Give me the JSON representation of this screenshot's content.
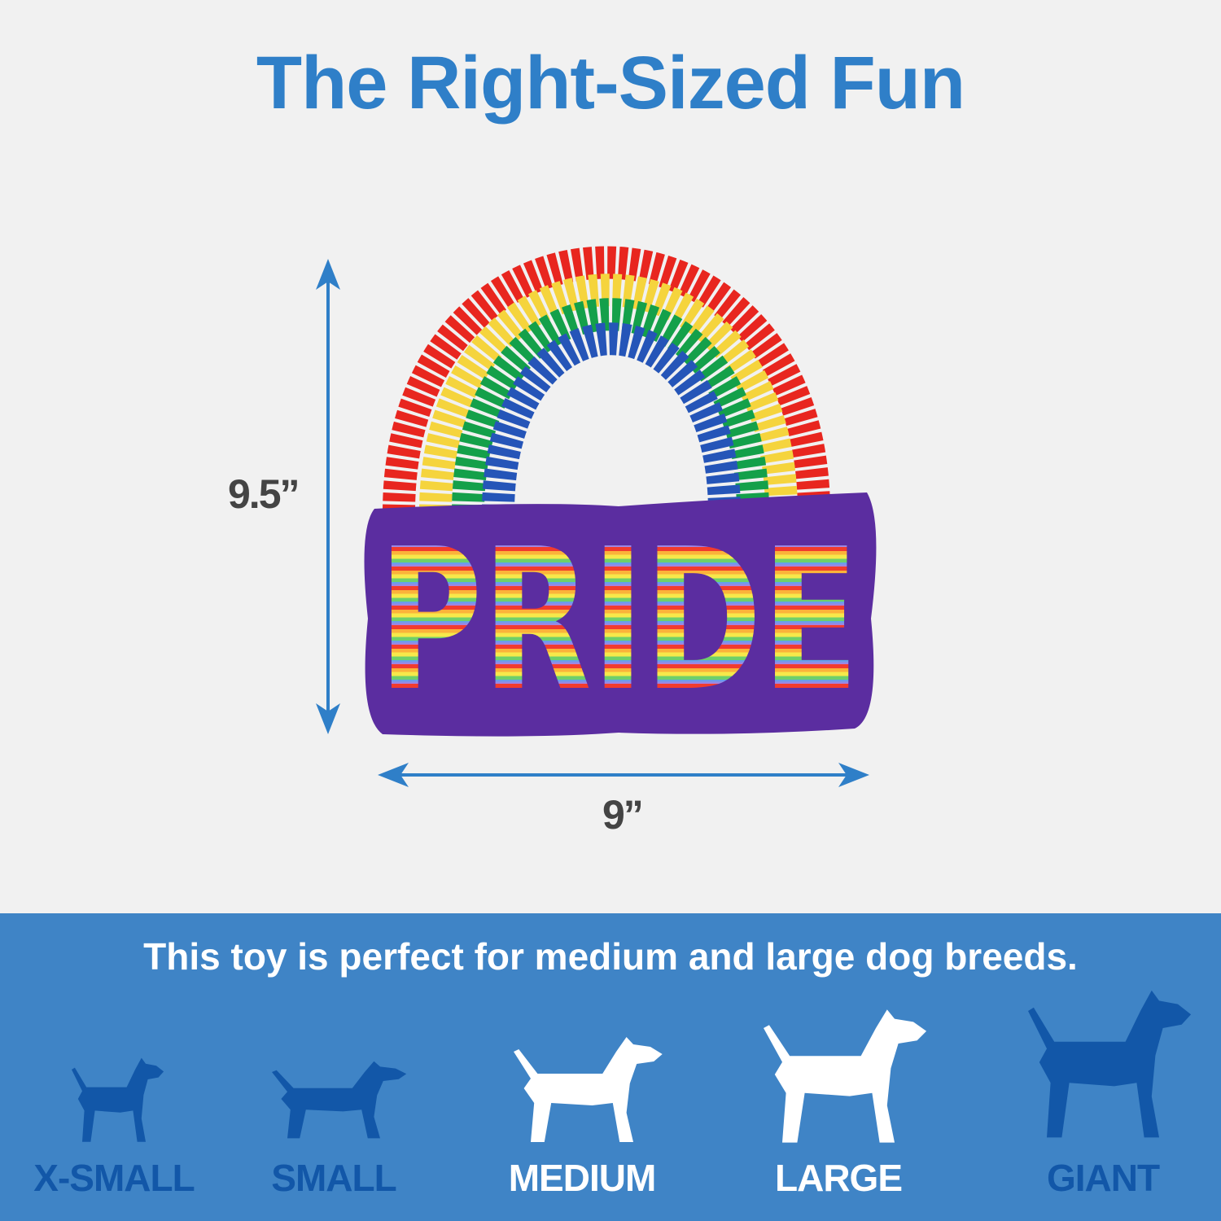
{
  "title": "The Right-Sized Fun",
  "dimensions": {
    "height": "9.5”",
    "width": "9”"
  },
  "product": {
    "print_text": "PRIDE"
  },
  "size_guide": {
    "headline": "This toy is perfect for medium and large dog breeds.",
    "sizes": [
      {
        "label": "X-SMALL",
        "recommended": false,
        "icon": "chihuahua-icon"
      },
      {
        "label": "SMALL",
        "recommended": false,
        "icon": "dachshund-icon"
      },
      {
        "label": "MEDIUM",
        "recommended": true,
        "icon": "bull-terrier-icon"
      },
      {
        "label": "LARGE",
        "recommended": true,
        "icon": "golden-retriever-icon"
      },
      {
        "label": "GIANT",
        "recommended": false,
        "icon": "great-dane-icon"
      }
    ]
  },
  "colors": {
    "title": "#2f7fc8",
    "band": "#3f84c6",
    "inactive": "#1257a8",
    "active": "#ffffff",
    "arrow": "#2f7fc8",
    "toy": "#5b2da0"
  }
}
